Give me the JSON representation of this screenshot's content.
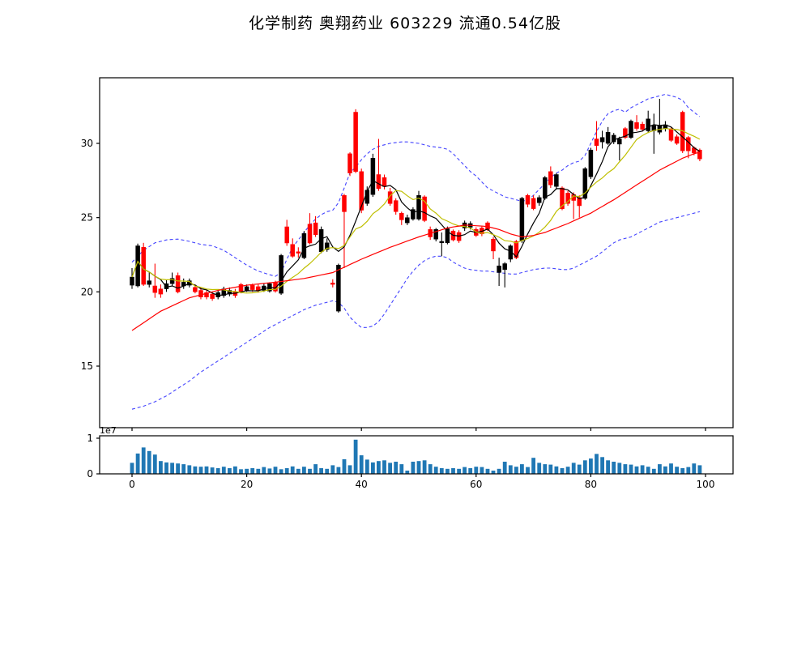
{
  "title": "化学制药  奥翔药业  603229  流通0.54亿股",
  "colors": {
    "up": "#000000",
    "down": "#ff0000",
    "ma_short": "#000000",
    "ma_mid": "#bfbf00",
    "ma_long": "#ff0000",
    "band": "#4444ff",
    "volume": "#1f77b4",
    "background": "#ffffff",
    "axis": "#000000"
  },
  "main_axis": {
    "y_ticks": [
      15,
      20,
      25,
      30
    ],
    "x_ticks": [
      0,
      20,
      40,
      60,
      80,
      100
    ]
  },
  "volume_axis": {
    "y_ticks": [
      0,
      1
    ],
    "offset_label": "1e7"
  },
  "chart_data": {
    "type": "candlestick",
    "title": "化学制药  奥翔药业  603229  流通0.54亿股",
    "x_range": [
      -5.6,
      104.8
    ],
    "y_main_range": [
      10.9,
      34.4
    ],
    "y_volume_range": [
      0,
      1.06
    ],
    "volume_unit": "1e7",
    "up_color": "#000000",
    "down_color": "#ff0000",
    "volume_color": "#1f77b4",
    "candles": {
      "open": [
        20.45,
        20.4,
        23.0,
        20.5,
        20.4,
        20.2,
        20.2,
        20.55,
        21.1,
        20.4,
        20.45,
        20.3,
        20.1,
        19.95,
        19.85,
        19.65,
        19.75,
        19.85,
        20.0,
        20.5,
        20.1,
        20.45,
        20.35,
        20.1,
        20.05,
        20.65,
        19.9,
        24.38,
        23.2,
        22.7,
        22.3,
        24.56,
        24.65,
        22.7,
        22.85,
        20.6,
        18.7,
        26.5,
        29.3,
        32.1,
        28.1,
        25.95,
        26.55,
        27.9,
        27.7,
        26.75,
        26.15,
        25.3,
        24.65,
        24.9,
        24.9,
        26.4,
        24.2,
        23.55,
        23.3,
        23.3,
        24.1,
        24.0,
        24.3,
        24.35,
        24.2,
        24.3,
        24.65,
        23.55,
        21.3,
        21.5,
        22.2,
        23.4,
        23.45,
        26.5,
        26.3,
        26.0,
        26.3,
        28.1,
        27.1,
        27.0,
        26.65,
        26.55,
        26.35,
        26.3,
        27.75,
        30.3,
        30.1,
        30.0,
        30.1,
        29.95,
        31.0,
        30.4,
        31.4,
        31.3,
        30.85,
        30.85,
        30.75,
        31.0,
        30.95,
        30.45,
        32.1,
        30.4,
        29.7,
        29.55
      ],
      "high": [
        21.6,
        23.25,
        23.3,
        21.3,
        21.9,
        20.5,
        20.8,
        21.3,
        21.3,
        20.9,
        20.9,
        20.5,
        20.3,
        20.2,
        20.0,
        20.1,
        20.35,
        20.3,
        20.2,
        20.6,
        20.5,
        20.55,
        20.5,
        20.55,
        20.65,
        20.75,
        22.55,
        24.85,
        23.6,
        23.0,
        24.1,
        25.3,
        25.1,
        24.4,
        23.6,
        20.85,
        21.9,
        26.6,
        29.4,
        32.3,
        28.3,
        27.1,
        29.3,
        30.3,
        27.9,
        27.0,
        26.3,
        25.4,
        25.2,
        25.7,
        26.8,
        26.5,
        24.4,
        24.3,
        24.0,
        24.4,
        24.2,
        24.15,
        24.8,
        24.75,
        24.35,
        24.4,
        24.75,
        23.7,
        22.3,
        22.0,
        23.2,
        23.5,
        26.4,
        26.6,
        26.5,
        26.5,
        27.8,
        28.45,
        28.0,
        27.1,
        26.8,
        26.7,
        26.5,
        28.4,
        29.7,
        31.5,
        30.85,
        31.1,
        30.7,
        30.45,
        31.1,
        31.6,
        31.9,
        31.45,
        32.2,
        32.0,
        33.0,
        31.5,
        31.1,
        30.6,
        32.2,
        30.5,
        29.8,
        29.65
      ],
      "low": [
        20.2,
        20.3,
        20.4,
        20.3,
        19.6,
        19.6,
        20.0,
        20.4,
        19.9,
        20.2,
        20.3,
        19.9,
        19.5,
        19.5,
        19.4,
        19.5,
        19.6,
        19.7,
        19.6,
        19.9,
        20.0,
        20.0,
        19.95,
        20.0,
        19.95,
        19.95,
        19.8,
        23.1,
        22.3,
        22.3,
        22.2,
        23.2,
        23.7,
        22.6,
        22.7,
        20.3,
        18.6,
        21.6,
        27.8,
        28.0,
        25.3,
        25.8,
        26.4,
        26.8,
        26.9,
        25.8,
        25.2,
        24.5,
        24.5,
        24.8,
        24.8,
        24.7,
        23.5,
        23.4,
        22.4,
        23.2,
        23.4,
        23.3,
        24.1,
        24.2,
        23.7,
        23.75,
        24.1,
        22.2,
        20.4,
        20.3,
        22.0,
        22.2,
        23.3,
        25.7,
        25.5,
        25.8,
        26.2,
        27.0,
        26.9,
        25.5,
        25.8,
        24.9,
        25.0,
        26.2,
        27.6,
        29.5,
        29.65,
        29.9,
        29.95,
        28.85,
        30.3,
        30.3,
        30.85,
        30.8,
        30.7,
        29.3,
        30.6,
        30.8,
        30.1,
        29.9,
        29.35,
        29.0,
        29.2,
        28.8
      ],
      "close": [
        21.0,
        23.1,
        20.5,
        20.75,
        19.95,
        19.85,
        20.55,
        20.9,
        20.0,
        20.65,
        20.75,
        20.0,
        19.65,
        19.65,
        19.55,
        19.95,
        20.2,
        20.1,
        19.75,
        20.0,
        20.35,
        20.15,
        20.1,
        20.4,
        20.55,
        20.05,
        22.45,
        23.29,
        22.4,
        22.6,
        23.93,
        23.29,
        23.85,
        24.2,
        23.3,
        20.5,
        21.8,
        25.4,
        28.0,
        28.1,
        25.5,
        26.85,
        29.0,
        26.95,
        27.1,
        25.95,
        25.4,
        24.85,
        25.0,
        25.55,
        26.5,
        24.8,
        23.7,
        24.2,
        23.4,
        24.25,
        23.5,
        23.45,
        24.65,
        24.6,
        23.8,
        23.9,
        24.2,
        22.75,
        21.75,
        21.9,
        23.1,
        22.3,
        26.3,
        25.9,
        25.6,
        26.35,
        27.7,
        27.2,
        27.9,
        25.6,
        25.95,
        26.15,
        25.8,
        28.3,
        29.55,
        29.85,
        30.4,
        30.75,
        30.55,
        30.3,
        30.4,
        31.5,
        31.0,
        30.95,
        31.65,
        31.2,
        31.2,
        31.25,
        30.2,
        30.0,
        29.5,
        29.5,
        29.35,
        28.95
      ]
    },
    "volume_1e7": [
      0.31,
      0.57,
      0.74,
      0.64,
      0.54,
      0.36,
      0.32,
      0.31,
      0.29,
      0.27,
      0.24,
      0.21,
      0.2,
      0.21,
      0.18,
      0.16,
      0.2,
      0.16,
      0.21,
      0.13,
      0.14,
      0.16,
      0.14,
      0.19,
      0.15,
      0.2,
      0.13,
      0.16,
      0.21,
      0.14,
      0.2,
      0.14,
      0.27,
      0.16,
      0.14,
      0.24,
      0.19,
      0.41,
      0.24,
      0.96,
      0.52,
      0.4,
      0.32,
      0.36,
      0.38,
      0.31,
      0.34,
      0.27,
      0.09,
      0.34,
      0.36,
      0.38,
      0.27,
      0.2,
      0.16,
      0.14,
      0.16,
      0.14,
      0.19,
      0.16,
      0.2,
      0.19,
      0.14,
      0.09,
      0.14,
      0.34,
      0.24,
      0.2,
      0.27,
      0.19,
      0.45,
      0.31,
      0.27,
      0.26,
      0.21,
      0.16,
      0.2,
      0.31,
      0.26,
      0.38,
      0.43,
      0.56,
      0.47,
      0.38,
      0.34,
      0.31,
      0.27,
      0.26,
      0.21,
      0.24,
      0.2,
      0.14,
      0.27,
      0.21,
      0.29,
      0.2,
      0.16,
      0.19,
      0.29,
      0.24
    ],
    "overlays": [
      {
        "name": "ma-short",
        "type": "sma",
        "window": 5,
        "color": "#000000"
      },
      {
        "name": "ma-mid",
        "type": "sma",
        "window": 10,
        "color": "#bfbf00"
      },
      {
        "name": "ma-long",
        "type": "line",
        "color": "#ff0000",
        "values": [
          17.4,
          17.66,
          17.92,
          18.18,
          18.44,
          18.7,
          18.88,
          19.06,
          19.24,
          19.42,
          19.6,
          19.7,
          19.8,
          19.9,
          20.0,
          20.1,
          20.17,
          20.24,
          20.31,
          20.38,
          20.45,
          20.49,
          20.53,
          20.57,
          20.61,
          20.65,
          20.7,
          20.75,
          20.8,
          20.85,
          20.9,
          20.98,
          21.06,
          21.14,
          21.22,
          21.3,
          21.48,
          21.66,
          21.84,
          22.02,
          22.2,
          22.36,
          22.52,
          22.68,
          22.84,
          23.0,
          23.14,
          23.28,
          23.42,
          23.56,
          23.7,
          23.82,
          23.94,
          24.06,
          24.18,
          24.3,
          24.37,
          24.43,
          24.5,
          24.48,
          24.45,
          24.43,
          24.4,
          24.3,
          24.2,
          24.05,
          23.9,
          23.8,
          23.7,
          23.75,
          23.8,
          23.9,
          24.0,
          24.15,
          24.3,
          24.45,
          24.6,
          24.78,
          24.95,
          25.13,
          25.3,
          25.53,
          25.75,
          25.98,
          26.2,
          26.45,
          26.7,
          26.95,
          27.2,
          27.45,
          27.7,
          27.95,
          28.2,
          28.4,
          28.6,
          28.8,
          29.0,
          29.15,
          29.3,
          29.4
        ]
      },
      {
        "name": "boll-upper",
        "type": "line",
        "style": "dashed",
        "color": "#4444ff",
        "values": [
          22.0,
          22.4,
          22.8,
          23.05,
          23.3,
          23.4,
          23.5,
          23.53,
          23.55,
          23.48,
          23.4,
          23.3,
          23.2,
          23.15,
          23.1,
          22.95,
          22.8,
          22.55,
          22.3,
          22.05,
          21.8,
          21.6,
          21.4,
          21.28,
          21.15,
          21.05,
          21.3,
          22.2,
          23.0,
          23.5,
          24.0,
          24.5,
          24.9,
          25.2,
          25.4,
          25.5,
          26.0,
          27.0,
          28.0,
          28.4,
          28.9,
          29.3,
          29.6,
          29.8,
          29.9,
          30.0,
          30.05,
          30.1,
          30.1,
          30.05,
          30.0,
          29.9,
          29.8,
          29.75,
          29.7,
          29.6,
          29.3,
          28.9,
          28.5,
          28.1,
          27.8,
          27.4,
          27.0,
          26.8,
          26.6,
          26.4,
          26.3,
          26.2,
          26.1,
          26.2,
          26.5,
          26.9,
          27.3,
          27.7,
          28.0,
          28.2,
          28.5,
          28.7,
          28.8,
          29.2,
          30.0,
          30.8,
          31.5,
          32.0,
          32.2,
          32.3,
          32.1,
          32.4,
          32.6,
          32.8,
          33.0,
          33.1,
          33.2,
          33.3,
          33.2,
          33.1,
          32.9,
          32.4,
          32.1,
          31.8
        ]
      },
      {
        "name": "boll-lower",
        "type": "line",
        "style": "dashed",
        "color": "#4444ff",
        "values": [
          12.1,
          12.2,
          12.3,
          12.45,
          12.6,
          12.8,
          13.0,
          13.25,
          13.5,
          13.75,
          14.0,
          14.3,
          14.6,
          14.85,
          15.1,
          15.35,
          15.6,
          15.85,
          16.1,
          16.35,
          16.6,
          16.85,
          17.1,
          17.35,
          17.6,
          17.8,
          18.0,
          18.2,
          18.4,
          18.6,
          18.8,
          18.95,
          19.1,
          19.2,
          19.3,
          19.4,
          19.3,
          18.9,
          18.3,
          17.9,
          17.6,
          17.6,
          17.7,
          18.0,
          18.5,
          19.1,
          19.7,
          20.3,
          20.9,
          21.4,
          21.8,
          22.1,
          22.3,
          22.4,
          22.4,
          22.3,
          22.0,
          21.8,
          21.6,
          21.5,
          21.45,
          21.4,
          21.4,
          21.35,
          21.3,
          21.25,
          21.2,
          21.2,
          21.3,
          21.4,
          21.5,
          21.55,
          21.6,
          21.6,
          21.55,
          21.5,
          21.5,
          21.6,
          21.8,
          22.0,
          22.2,
          22.4,
          22.7,
          23.0,
          23.3,
          23.5,
          23.6,
          23.7,
          23.9,
          24.1,
          24.3,
          24.5,
          24.7,
          24.8,
          24.9,
          25.0,
          25.1,
          25.2,
          25.3,
          25.4
        ]
      }
    ]
  }
}
